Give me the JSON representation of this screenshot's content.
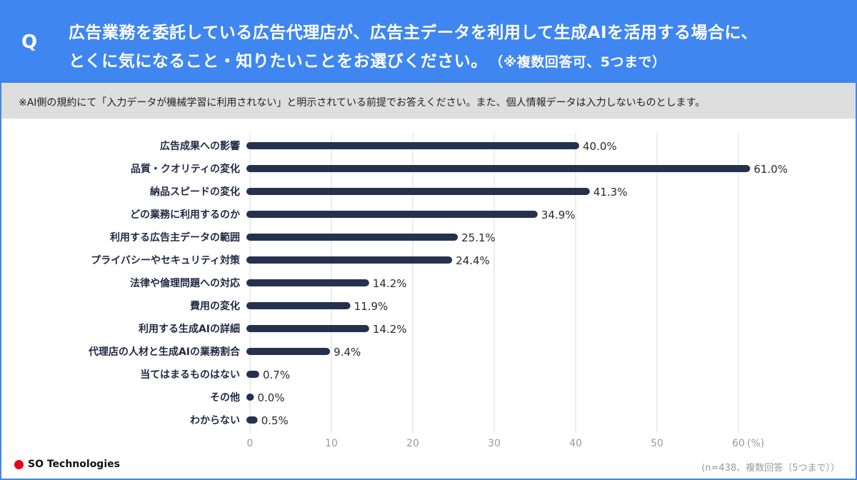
{
  "header": {
    "q_mark": "Q",
    "question_line1": "広告業務を委託している広告代理店が、広告主データを利用して生成AIを活用する場合に、",
    "question_line2": "とくに気になること・知りたいことをお選びください。",
    "question_note": "（※複数回答可、5つまで）"
  },
  "notice": "※AI側の規約にて「入力データが機械学習に利用されない」と明示されている前提でお答えください。また、個人情報データは入力しないものとします。",
  "chart_data": {
    "type": "bar",
    "orientation": "horizontal",
    "categories": [
      "広告成果への影響",
      "品質・クオリティの変化",
      "納品スピードの変化",
      "どの業務に利用するのか",
      "利用する広告主データの範囲",
      "プライバシーやセキュリティ対策",
      "法律や倫理問題への対応",
      "費用の変化",
      "利用する生成AIの詳細",
      "代理店の人材と生成AIの業務割合",
      "当てはまるものはない",
      "その他",
      "わからない"
    ],
    "values": [
      40.0,
      61.0,
      41.3,
      34.9,
      25.1,
      24.4,
      14.2,
      11.9,
      14.2,
      9.4,
      0.7,
      0.0,
      0.5
    ],
    "value_labels": [
      "40.0%",
      "61.0%",
      "41.3%",
      "34.9%",
      "25.1%",
      "24.4%",
      "14.2%",
      "11.9%",
      "14.2%",
      "9.4%",
      "0.7%",
      "0.0%",
      "0.5%"
    ],
    "xticks": [
      0,
      10,
      20,
      30,
      40,
      50,
      60
    ],
    "xunit": "(%)",
    "xlim": [
      0,
      60
    ],
    "grid": true,
    "bar_color": "#25314f"
  },
  "footer": {
    "logo_text": "SO Technologies",
    "logo_dot_color": "#e8001c",
    "note": "(n=438、複数回答（5つまで））"
  },
  "colors": {
    "header_bg": "#3f86f1",
    "notice_bg": "#dedede"
  }
}
